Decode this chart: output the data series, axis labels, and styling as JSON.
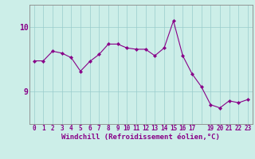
{
  "x": [
    0,
    1,
    2,
    3,
    4,
    5,
    6,
    7,
    8,
    9,
    10,
    11,
    12,
    13,
    14,
    15,
    16,
    17,
    18,
    19,
    20,
    21,
    22,
    23
  ],
  "y": [
    9.48,
    9.48,
    9.63,
    9.6,
    9.53,
    9.32,
    9.47,
    9.58,
    9.74,
    9.74,
    9.68,
    9.66,
    9.66,
    9.56,
    9.68,
    10.1,
    9.56,
    9.28,
    9.08,
    8.8,
    8.75,
    8.86,
    8.83,
    8.88
  ],
  "line_color": "#880088",
  "marker": "D",
  "marker_size": 2.2,
  "bg_color": "#cceee8",
  "grid_color": "#99cccc",
  "tick_color": "#880088",
  "label_color": "#880088",
  "xlabel": "Windchill (Refroidissement éolien,°C)",
  "xlim": [
    -0.5,
    23.5
  ],
  "ylim": [
    8.5,
    10.35
  ],
  "yticks": [
    9,
    10
  ],
  "xtick_labels": [
    "0",
    "1",
    "2",
    "3",
    "4",
    "5",
    "6",
    "7",
    "8",
    "9",
    "10",
    "11",
    "12",
    "13",
    "14",
    "15",
    "16",
    "17",
    "",
    "19",
    "20",
    "21",
    "22",
    "23"
  ],
  "xlabel_fontsize": 6.5,
  "tick_fontsize": 5.5
}
